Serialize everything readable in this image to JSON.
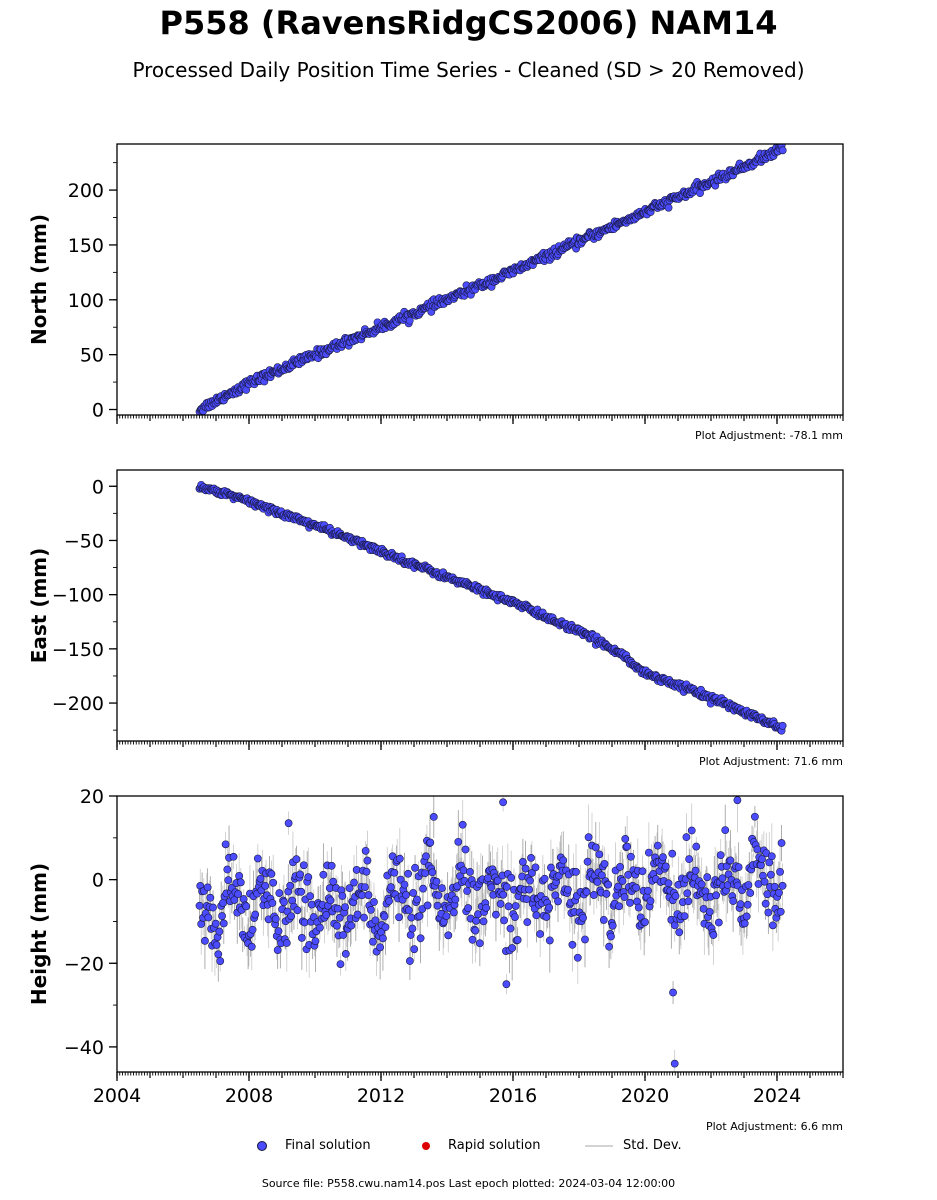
{
  "title": "P558 (RavensRidgCS2006) NAM14",
  "subtitle": "Processed Daily Position Time Series - Cleaned (SD > 20 Removed)",
  "footer": "Source file: P558.cwu.nam14.pos  Last epoch plotted: 2024-03-04 12:00:00",
  "legend": {
    "final": "Final solution",
    "rapid": "Rapid solution",
    "std": "Std. Dev."
  },
  "colors": {
    "final": "#4b4bff",
    "rapid": "#dd0000",
    "std": "#c8c8c8",
    "edge": "#1a1a40"
  },
  "chart_data": [
    {
      "type": "scatter",
      "name": "north",
      "ylabel": "North (mm)",
      "xlim": [
        2004,
        2026
      ],
      "ylim": [
        -5,
        242
      ],
      "yticks": [
        0,
        50,
        100,
        150,
        200
      ],
      "xticks": [
        2004,
        2008,
        2012,
        2016,
        2020,
        2024
      ],
      "show_xtick_labels": false,
      "adjustment": "Plot Adjustment: -78.1 mm",
      "series": [
        {
          "name": "Final solution",
          "x": [
            2006.5,
            2008,
            2010,
            2012,
            2014,
            2016,
            2018,
            2020,
            2022,
            2024.17
          ],
          "y": [
            0,
            24,
            50,
            75,
            100,
            126,
            153,
            180,
            207,
            238
          ],
          "noise_sd": 2.0
        }
      ]
    },
    {
      "type": "scatter",
      "name": "east",
      "ylabel": "East (mm)",
      "xlim": [
        2004,
        2026
      ],
      "ylim": [
        -235,
        15
      ],
      "yticks": [
        0,
        -50,
        -100,
        -150,
        -200
      ],
      "xticks": [
        2004,
        2008,
        2012,
        2016,
        2020,
        2024
      ],
      "show_xtick_labels": false,
      "adjustment": "Plot Adjustment: 71.6 mm",
      "series": [
        {
          "name": "Final solution",
          "x": [
            2006.5,
            2008,
            2010,
            2012,
            2014,
            2016,
            2018,
            2019.3,
            2019.6,
            2020,
            2022,
            2024.17
          ],
          "y": [
            0,
            -14,
            -36,
            -60,
            -84,
            -107,
            -134,
            -154,
            -164,
            -172,
            -195,
            -224
          ],
          "noise_sd": 1.5
        }
      ]
    },
    {
      "type": "scatter",
      "name": "height",
      "ylabel": "Height (mm)",
      "xlim": [
        2004,
        2026
      ],
      "ylim": [
        -46,
        20
      ],
      "yticks": [
        20,
        0,
        -20,
        -40
      ],
      "xticks": [
        2004,
        2008,
        2012,
        2016,
        2020,
        2024
      ],
      "show_xtick_labels": true,
      "adjustment": "Plot Adjustment: 6.6 mm",
      "series": [
        {
          "name": "Final solution",
          "x": [
            2006.5,
            2024.17
          ],
          "y": [
            -8,
            0
          ],
          "seasonal_amplitude": 5,
          "noise_sd": 4.5,
          "outliers": [
            [
              2020.9,
              -44
            ],
            [
              2020.85,
              -27
            ],
            [
              2015.8,
              -25
            ],
            [
              2009.2,
              13.5
            ],
            [
              2013.6,
              15
            ],
            [
              2015.7,
              18.5
            ],
            [
              2022.8,
              19
            ]
          ]
        }
      ]
    }
  ]
}
